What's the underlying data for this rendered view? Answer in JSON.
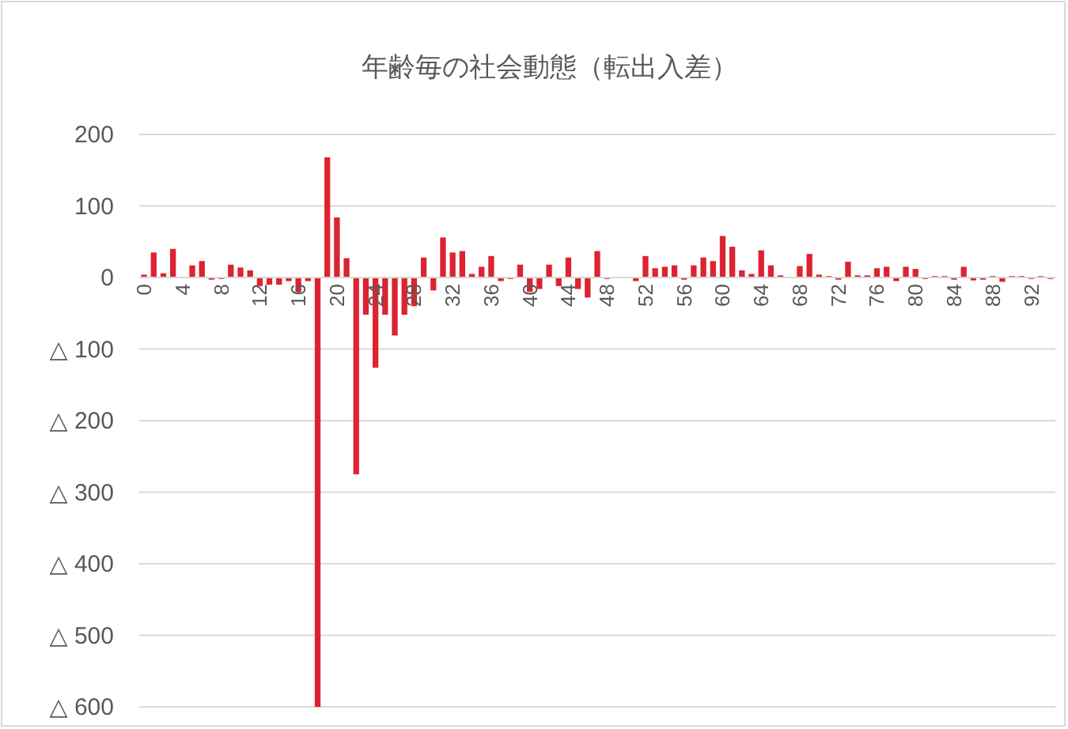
{
  "chart_data": {
    "type": "bar",
    "title": "年齢毎の社会動態（転出入差）",
    "categories": [
      "0",
      null,
      null,
      null,
      "4",
      null,
      null,
      null,
      "8",
      null,
      null,
      null,
      "12",
      null,
      null,
      null,
      "16",
      null,
      null,
      null,
      "20",
      null,
      null,
      null,
      "24",
      null,
      null,
      null,
      "28",
      null,
      null,
      null,
      "32",
      null,
      null,
      null,
      "36",
      null,
      null,
      null,
      "40",
      null,
      null,
      null,
      "44",
      null,
      null,
      null,
      "48",
      null,
      null,
      null,
      "52",
      null,
      null,
      null,
      "56",
      null,
      null,
      null,
      "60",
      null,
      null,
      null,
      "64",
      null,
      null,
      null,
      "68",
      null,
      null,
      null,
      "72",
      null,
      null,
      null,
      "76",
      null,
      null,
      null,
      "80",
      null,
      null,
      null,
      "84",
      null,
      null,
      null,
      "88",
      null,
      null,
      null,
      "92",
      null,
      null
    ],
    "values": [
      4,
      35,
      6,
      40,
      0,
      17,
      23,
      -3,
      -2,
      18,
      14,
      10,
      -12,
      -10,
      -10,
      -5,
      -20,
      -5,
      -600,
      168,
      84,
      27,
      -275,
      -52,
      -126,
      -52,
      -81,
      -52,
      -40,
      28,
      -18,
      56,
      35,
      37,
      5,
      15,
      30,
      -5,
      -2,
      18,
      -20,
      -16,
      18,
      -12,
      28,
      -16,
      -28,
      37,
      -2,
      0,
      0,
      -5,
      30,
      13,
      15,
      17,
      -3,
      17,
      28,
      23,
      58,
      43,
      10,
      5,
      38,
      17,
      3,
      0,
      16,
      33,
      4,
      2,
      -3,
      22,
      3,
      3,
      13,
      15,
      -5,
      15,
      12,
      -2,
      2,
      2,
      -3,
      15,
      -4,
      -3,
      2,
      -6,
      2,
      2,
      -2,
      2,
      -2
    ],
    "color": "#dc2430",
    "ylim": [
      -600,
      200
    ],
    "yticks": [
      200,
      100,
      0,
      {
        "value": -100,
        "label": "△ 100"
      },
      {
        "value": -200,
        "label": "△ 200"
      },
      {
        "value": -300,
        "label": "△ 300"
      },
      {
        "value": -400,
        "label": "△ 400"
      },
      {
        "value": -500,
        "label": "△ 500"
      },
      {
        "value": -600,
        "label": "△ 600"
      }
    ],
    "grid": "y"
  }
}
